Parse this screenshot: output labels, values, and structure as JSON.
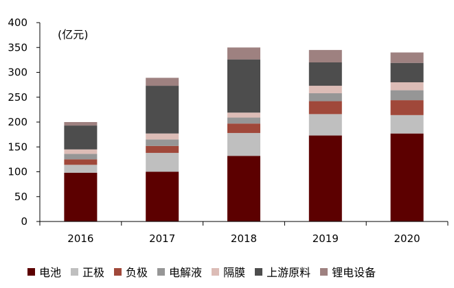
{
  "chart_data": {
    "type": "bar",
    "stacked": true,
    "unit_label": "(亿元)",
    "categories": [
      "2016",
      "2017",
      "2018",
      "2019",
      "2020"
    ],
    "series": [
      {
        "name": "电池",
        "color": "#5c0000",
        "values": [
          98,
          100,
          132,
          173,
          177
        ]
      },
      {
        "name": "正极",
        "color": "#bfbfbf",
        "values": [
          16,
          38,
          46,
          43,
          37
        ]
      },
      {
        "name": "负极",
        "color": "#a0483a",
        "values": [
          11,
          14,
          19,
          26,
          30
        ]
      },
      {
        "name": "电解液",
        "color": "#969696",
        "values": [
          11,
          13,
          12,
          16,
          20
        ]
      },
      {
        "name": "隔膜",
        "color": "#dcbcb6",
        "values": [
          9,
          12,
          10,
          15,
          16
        ]
      },
      {
        "name": "上游原料",
        "color": "#4d4d4d",
        "values": [
          48,
          96,
          107,
          47,
          39
        ]
      },
      {
        "name": "锂电设备",
        "color": "#9e8180",
        "values": [
          7,
          16,
          24,
          25,
          21
        ]
      }
    ],
    "ylim": [
      0,
      400
    ],
    "yticks": [
      0,
      50,
      100,
      150,
      200,
      250,
      300,
      350,
      400
    ],
    "grid": false,
    "legend_position": "bottom"
  }
}
